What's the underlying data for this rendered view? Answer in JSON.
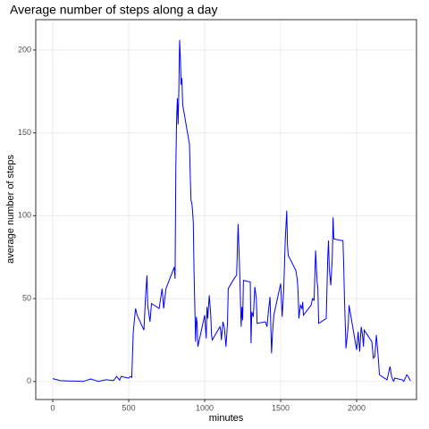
{
  "chart_data": {
    "type": "line",
    "title": "Average number of steps along a day",
    "x_label": "minutes",
    "y_label": "average number of steps",
    "xlim": [
      -112,
      2394
    ],
    "ylim": [
      -10.9,
      218.3
    ],
    "xticks": [
      0,
      500,
      1000,
      1500,
      2000
    ],
    "yticks": [
      0,
      50,
      100,
      150,
      200
    ],
    "grid": true,
    "x": [
      0,
      50,
      100,
      150,
      200,
      250,
      300,
      350,
      400,
      420,
      440,
      450,
      500,
      510,
      520,
      530,
      545,
      555,
      600,
      610,
      620,
      625,
      640,
      650,
      700,
      710,
      720,
      730,
      745,
      800,
      805,
      810,
      815,
      820,
      825,
      830,
      835,
      840,
      845,
      850,
      855,
      900,
      905,
      910,
      915,
      920,
      925,
      930,
      935,
      940,
      945,
      950,
      955,
      1000,
      1010,
      1015,
      1020,
      1030,
      1040,
      1045,
      1050,
      1100,
      1105,
      1110,
      1120,
      1130,
      1140,
      1150,
      1155,
      1200,
      1210,
      1220,
      1230,
      1240,
      1245,
      1250,
      1255,
      1300,
      1305,
      1310,
      1320,
      1330,
      1340,
      1345,
      1400,
      1410,
      1420,
      1430,
      1440,
      1445,
      1455,
      1500,
      1510,
      1520,
      1530,
      1540,
      1545,
      1550,
      1600,
      1610,
      1615,
      1620,
      1630,
      1640,
      1645,
      1650,
      1700,
      1710,
      1720,
      1730,
      1740,
      1745,
      1750,
      1800,
      1810,
      1815,
      1820,
      1830,
      1840,
      1845,
      1850,
      1900,
      1910,
      1915,
      1920,
      1930,
      1940,
      1945,
      1950,
      2000,
      2010,
      2020,
      2030,
      2040,
      2045,
      2050,
      2100,
      2110,
      2120,
      2130,
      2140,
      2145,
      2150,
      2200,
      2210,
      2220,
      2230,
      2240,
      2245,
      2250,
      2300,
      2310,
      2320,
      2330,
      2340,
      2350,
      2355
    ],
    "series": [
      {
        "name": "steps",
        "color": "#0000ff",
        "values": [
          1.7,
          0.5,
          0.3,
          0.2,
          0,
          1.5,
          0,
          1,
          0.5,
          3,
          0.8,
          3,
          2,
          3,
          2.5,
          30,
          44,
          40,
          31,
          50,
          64,
          46,
          36,
          47,
          44,
          50,
          56,
          44,
          56,
          69,
          62,
          129,
          157,
          171,
          155,
          177,
          206,
          195,
          179,
          183,
          167,
          143,
          124,
          109,
          108,
          103,
          96,
          66,
          45,
          24,
          39,
          35,
          21,
          40,
          26,
          45,
          38,
          52,
          40,
          28,
          25,
          33,
          31,
          25,
          36,
          32,
          21,
          35,
          56,
          63,
          64,
          95,
          67,
          33,
          45,
          37,
          61,
          60,
          23,
          42,
          39,
          57,
          50,
          35,
          36,
          33,
          43,
          51,
          17,
          27,
          40,
          59,
          39,
          55,
          85,
          103,
          82,
          76,
          67,
          61,
          53,
          38,
          46,
          44,
          48,
          40,
          46,
          50,
          49,
          79,
          60,
          56,
          35,
          38,
          75,
          85,
          68,
          58,
          75,
          99,
          86,
          85,
          85,
          70,
          50,
          20,
          29,
          34,
          46,
          19,
          30,
          18,
          33,
          27,
          21,
          31,
          24,
          14,
          15,
          28,
          17,
          11,
          4,
          1,
          5,
          9,
          3,
          0.5,
          0.2,
          2,
          1,
          0,
          2,
          4,
          3,
          1,
          0.5
        ]
      }
    ]
  }
}
